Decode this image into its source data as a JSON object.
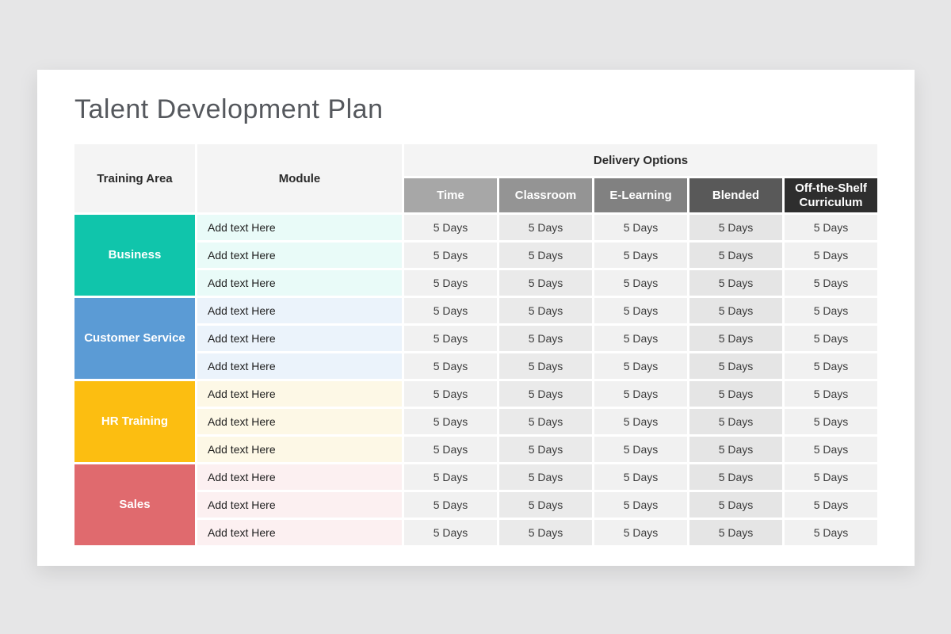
{
  "title": "Talent Development Plan",
  "colors": {
    "page_background": "#e6e6e7",
    "card_background": "#ffffff",
    "header_background": "#f4f4f4"
  },
  "table": {
    "headers": {
      "training_area": "Training Area",
      "module": "Module",
      "delivery_options": "Delivery Options"
    },
    "delivery_columns": [
      {
        "label": "Time",
        "header_color": "#a7a7a7",
        "cell_background": "#f1f1f1"
      },
      {
        "label": "Classroom",
        "header_color": "#949494",
        "cell_background": "#eaeaea"
      },
      {
        "label": "E-Learning",
        "header_color": "#818181",
        "cell_background": "#f1f1f1"
      },
      {
        "label": "Blended",
        "header_color": "#595959",
        "cell_background": "#e5e5e5"
      },
      {
        "label": "Off-the-Shelf Curriculum",
        "header_color": "#2e2e2e",
        "cell_background": "#f1f1f1"
      }
    ],
    "groups": [
      {
        "name": "Business",
        "color": "#10c5ab",
        "tint": "#e9fbf8",
        "rows": [
          {
            "module": "Add text Here",
            "values": [
              "5 Days",
              "5 Days",
              "5 Days",
              "5 Days",
              "5 Days"
            ]
          },
          {
            "module": "Add text Here",
            "values": [
              "5 Days",
              "5 Days",
              "5 Days",
              "5 Days",
              "5 Days"
            ]
          },
          {
            "module": "Add text Here",
            "values": [
              "5 Days",
              "5 Days",
              "5 Days",
              "5 Days",
              "5 Days"
            ]
          }
        ]
      },
      {
        "name": "Customer Service",
        "color": "#5b9bd5",
        "tint": "#ebf3fb",
        "rows": [
          {
            "module": "Add text Here",
            "values": [
              "5 Days",
              "5 Days",
              "5 Days",
              "5 Days",
              "5 Days"
            ]
          },
          {
            "module": "Add text Here",
            "values": [
              "5 Days",
              "5 Days",
              "5 Days",
              "5 Days",
              "5 Days"
            ]
          },
          {
            "module": "Add text Here",
            "values": [
              "5 Days",
              "5 Days",
              "5 Days",
              "5 Days",
              "5 Days"
            ]
          }
        ]
      },
      {
        "name": "HR Training",
        "color": "#fcbe11",
        "tint": "#fdf8e6",
        "rows": [
          {
            "module": "Add text Here",
            "values": [
              "5 Days",
              "5 Days",
              "5 Days",
              "5 Days",
              "5 Days"
            ]
          },
          {
            "module": "Add text Here",
            "values": [
              "5 Days",
              "5 Days",
              "5 Days",
              "5 Days",
              "5 Days"
            ]
          },
          {
            "module": "Add text Here",
            "values": [
              "5 Days",
              "5 Days",
              "5 Days",
              "5 Days",
              "5 Days"
            ]
          }
        ]
      },
      {
        "name": "Sales",
        "color": "#e06a6e",
        "tint": "#fcf0f1",
        "rows": [
          {
            "module": "Add text Here",
            "values": [
              "5 Days",
              "5 Days",
              "5 Days",
              "5 Days",
              "5 Days"
            ]
          },
          {
            "module": "Add text Here",
            "values": [
              "5 Days",
              "5 Days",
              "5 Days",
              "5 Days",
              "5 Days"
            ]
          },
          {
            "module": "Add text Here",
            "values": [
              "5 Days",
              "5 Days",
              "5 Days",
              "5 Days",
              "5 Days"
            ]
          }
        ]
      }
    ]
  }
}
